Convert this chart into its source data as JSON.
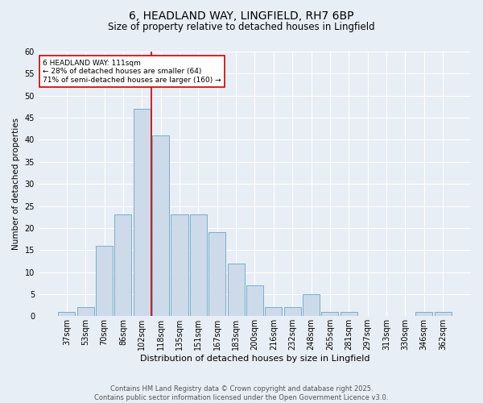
{
  "title1": "6, HEADLAND WAY, LINGFIELD, RH7 6BP",
  "title2": "Size of property relative to detached houses in Lingfield",
  "xlabel": "Distribution of detached houses by size in Lingfield",
  "ylabel": "Number of detached properties",
  "bar_labels": [
    "37sqm",
    "53sqm",
    "70sqm",
    "86sqm",
    "102sqm",
    "118sqm",
    "135sqm",
    "151sqm",
    "167sqm",
    "183sqm",
    "200sqm",
    "216sqm",
    "232sqm",
    "248sqm",
    "265sqm",
    "281sqm",
    "297sqm",
    "313sqm",
    "330sqm",
    "346sqm",
    "362sqm"
  ],
  "bar_values": [
    1,
    2,
    16,
    23,
    47,
    41,
    23,
    23,
    19,
    12,
    7,
    2,
    2,
    5,
    1,
    1,
    0,
    0,
    0,
    1,
    1
  ],
  "bar_color": "#ccdaea",
  "bar_edgecolor": "#7aafc8",
  "vline_x": 4.5,
  "vline_color": "#cc0000",
  "annotation_text": "6 HEADLAND WAY: 111sqm\n← 28% of detached houses are smaller (64)\n71% of semi-detached houses are larger (160) →",
  "annotation_box_edgecolor": "#cc0000",
  "ylim": [
    0,
    60
  ],
  "yticks": [
    0,
    5,
    10,
    15,
    20,
    25,
    30,
    35,
    40,
    45,
    50,
    55,
    60
  ],
  "footer": "Contains HM Land Registry data © Crown copyright and database right 2025.\nContains public sector information licensed under the Open Government Licence v3.0.",
  "background_color": "#e8eef5",
  "plot_bg_color": "#e8eef5",
  "title1_fontsize": 10,
  "title2_fontsize": 8.5,
  "xlabel_fontsize": 8,
  "ylabel_fontsize": 7.5,
  "tick_fontsize": 7,
  "footer_fontsize": 6,
  "annotation_fontsize": 6.5
}
